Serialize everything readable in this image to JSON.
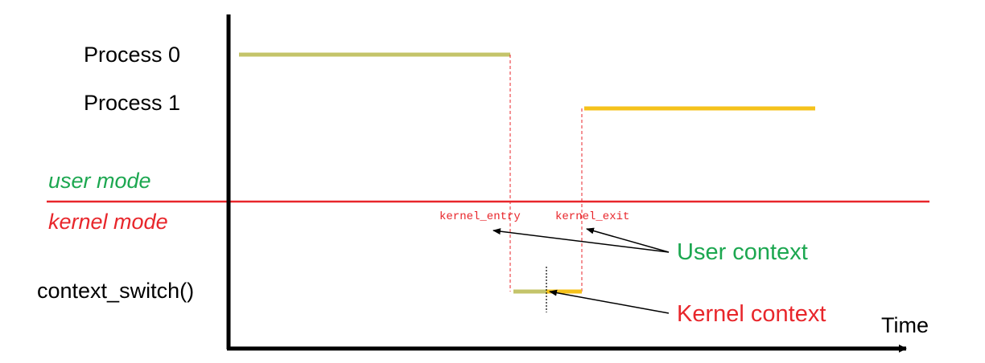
{
  "labels": {
    "process0": "Process 0",
    "process1": "Process 1",
    "user_mode": "user mode",
    "kernel_mode": "kernel mode",
    "context_switch": "context_switch()",
    "kernel_entry": "kernel_entry",
    "kernel_exit": "kernel_exit",
    "user_context": "User context",
    "kernel_context": "Kernel context",
    "time": "Time"
  },
  "colors": {
    "process0": "#c4c46a",
    "process1": "#f5c21b",
    "mode_divider": "#e8262b",
    "user_text": "#1ca750",
    "kernel_text": "#e8262b",
    "axis": "#000000"
  }
}
